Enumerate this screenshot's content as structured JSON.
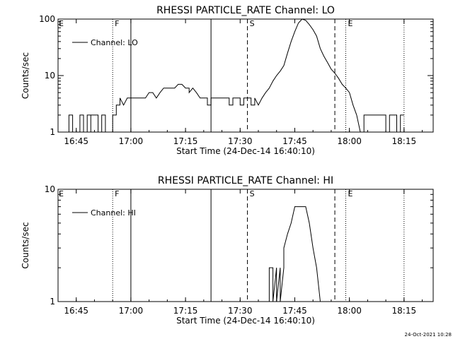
{
  "footer": {
    "timestamp": "24-Oct-2021 10:28"
  },
  "chart_data": [
    {
      "type": "line",
      "title": "RHESSI PARTICLE_RATE Channel: LO",
      "xlabel": "Start Time (24-Dec-14 16:40:10)",
      "ylabel": "Counts/sec",
      "y_scale": "log",
      "xlim": [
        "16:40",
        "18:23"
      ],
      "ylim": [
        1,
        100
      ],
      "x_ticks": [
        "16:45",
        "17:00",
        "17:15",
        "17:30",
        "17:45",
        "18:00",
        "18:15"
      ],
      "y_ticks": [
        "1",
        "10",
        "100"
      ],
      "legend": {
        "position": "top-left",
        "entries": [
          "Channel: LO"
        ]
      },
      "markers": [
        {
          "time": "16:55",
          "style": "dotted",
          "label": "F"
        },
        {
          "time": "17:00",
          "style": "solid",
          "label": ""
        },
        {
          "time": "17:22",
          "style": "solid",
          "label": ""
        },
        {
          "time": "17:32",
          "style": "dashed",
          "label": "S"
        },
        {
          "time": "17:56",
          "style": "dashed",
          "label": ""
        },
        {
          "time": "17:59",
          "style": "dotted",
          "label": "E"
        },
        {
          "time": "18:15",
          "style": "dotted",
          "label": ""
        }
      ],
      "edge_labels": [
        "E"
      ],
      "series": [
        {
          "name": "Channel: LO",
          "points": [
            [
              "16:43",
              1
            ],
            [
              "16:43",
              2
            ],
            [
              "16:44",
              2
            ],
            [
              "16:44",
              1
            ],
            [
              "16:46",
              1
            ],
            [
              "16:46",
              2
            ],
            [
              "16:47",
              2
            ],
            [
              "16:47",
              1
            ],
            [
              "16:48",
              1
            ],
            [
              "16:48",
              2
            ],
            [
              "16:49",
              2
            ],
            [
              "16:49",
              1
            ],
            [
              "16:49",
              2
            ],
            [
              "16:50",
              2
            ],
            [
              "16:51",
              2
            ],
            [
              "16:51",
              1
            ],
            [
              "16:52",
              1
            ],
            [
              "16:52",
              2
            ],
            [
              "16:53",
              2
            ],
            [
              "16:53",
              1
            ],
            [
              "16:54",
              1
            ],
            [
              "16:55",
              1
            ],
            [
              "16:55",
              2
            ],
            [
              "16:56",
              2
            ],
            [
              "16:56",
              3
            ],
            [
              "16:57",
              3
            ],
            [
              "16:57",
              4
            ],
            [
              "16:58",
              3
            ],
            [
              "16:58",
              3
            ],
            [
              "16:59",
              4
            ],
            [
              "17:00",
              4
            ],
            [
              "17:01",
              4
            ],
            [
              "17:02",
              4
            ],
            [
              "17:03",
              4
            ],
            [
              "17:04",
              4
            ],
            [
              "17:05",
              5
            ],
            [
              "17:06",
              5
            ],
            [
              "17:07",
              4
            ],
            [
              "17:08",
              5
            ],
            [
              "17:09",
              6
            ],
            [
              "17:10",
              6
            ],
            [
              "17:11",
              6
            ],
            [
              "17:12",
              6
            ],
            [
              "17:13",
              7
            ],
            [
              "17:14",
              7
            ],
            [
              "17:15",
              6
            ],
            [
              "17:16",
              6
            ],
            [
              "17:16",
              5
            ],
            [
              "17:17",
              6
            ],
            [
              "17:18",
              5
            ],
            [
              "17:19",
              4
            ],
            [
              "17:20",
              4
            ],
            [
              "17:21",
              4
            ],
            [
              "17:21",
              3
            ],
            [
              "17:22",
              3
            ],
            [
              "17:22",
              4
            ],
            [
              "17:23",
              4
            ],
            [
              "17:24",
              4
            ],
            [
              "17:25",
              4
            ],
            [
              "17:26",
              4
            ],
            [
              "17:27",
              4
            ],
            [
              "17:27",
              3
            ],
            [
              "17:28",
              3
            ],
            [
              "17:28",
              4
            ],
            [
              "17:29",
              4
            ],
            [
              "17:30",
              4
            ],
            [
              "17:30",
              3
            ],
            [
              "17:31",
              3
            ],
            [
              "17:31",
              4
            ],
            [
              "17:32",
              4
            ],
            [
              "17:33",
              4
            ],
            [
              "17:33",
              3
            ],
            [
              "17:34",
              3
            ],
            [
              "17:34",
              4
            ],
            [
              "17:35",
              3
            ],
            [
              "17:36",
              4
            ],
            [
              "17:37",
              5
            ],
            [
              "17:38",
              6
            ],
            [
              "17:39",
              8
            ],
            [
              "17:40",
              10
            ],
            [
              "17:41",
              12
            ],
            [
              "17:42",
              15
            ],
            [
              "17:43",
              25
            ],
            [
              "17:44",
              40
            ],
            [
              "17:45",
              60
            ],
            [
              "17:46",
              85
            ],
            [
              "17:47",
              100
            ],
            [
              "17:48",
              95
            ],
            [
              "17:49",
              80
            ],
            [
              "17:50",
              65
            ],
            [
              "17:51",
              50
            ],
            [
              "17:52",
              30
            ],
            [
              "17:53",
              22
            ],
            [
              "17:54",
              17
            ],
            [
              "17:55",
              13
            ],
            [
              "17:56",
              11
            ],
            [
              "17:57",
              9
            ],
            [
              "17:58",
              7
            ],
            [
              "17:59",
              6
            ],
            [
              "18:00",
              5
            ],
            [
              "18:01",
              3
            ],
            [
              "18:02",
              2
            ],
            [
              "18:03",
              1
            ],
            [
              "18:04",
              1
            ],
            [
              "18:04",
              2
            ],
            [
              "18:05",
              2
            ],
            [
              "18:06",
              2
            ],
            [
              "18:07",
              2
            ],
            [
              "18:08",
              2
            ],
            [
              "18:09",
              2
            ],
            [
              "18:10",
              2
            ],
            [
              "18:10",
              1
            ],
            [
              "18:11",
              1
            ],
            [
              "18:11",
              2
            ],
            [
              "18:13",
              2
            ],
            [
              "18:13",
              1
            ],
            [
              "18:14",
              1
            ],
            [
              "18:14",
              2
            ],
            [
              "18:15",
              2
            ]
          ]
        }
      ]
    },
    {
      "type": "line",
      "title": "RHESSI PARTICLE_RATE Channel: HI",
      "xlabel": "Start Time (24-Dec-14 16:40:10)",
      "ylabel": "Counts/sec",
      "y_scale": "log",
      "xlim": [
        "16:40",
        "18:23"
      ],
      "ylim": [
        1,
        10
      ],
      "x_ticks": [
        "16:45",
        "17:00",
        "17:15",
        "17:30",
        "17:45",
        "18:00",
        "18:15"
      ],
      "y_ticks": [
        "1",
        "10"
      ],
      "legend": {
        "position": "top-left",
        "entries": [
          "Channel: HI"
        ]
      },
      "markers": [
        {
          "time": "16:55",
          "style": "dotted",
          "label": "F"
        },
        {
          "time": "17:00",
          "style": "solid",
          "label": ""
        },
        {
          "time": "17:22",
          "style": "solid",
          "label": ""
        },
        {
          "time": "17:32",
          "style": "dashed",
          "label": "S"
        },
        {
          "time": "17:56",
          "style": "dashed",
          "label": ""
        },
        {
          "time": "17:59",
          "style": "dotted",
          "label": "E"
        },
        {
          "time": "18:15",
          "style": "dotted",
          "label": ""
        }
      ],
      "edge_labels": [
        "E"
      ],
      "series": [
        {
          "name": "Channel: HI",
          "points": [
            [
              "17:38",
              1
            ],
            [
              "17:38",
              2
            ],
            [
              "17:39",
              2
            ],
            [
              "17:39",
              1
            ],
            [
              "17:40",
              2
            ],
            [
              "17:40",
              1
            ],
            [
              "17:41",
              2
            ],
            [
              "17:41",
              1
            ],
            [
              "17:42",
              2
            ],
            [
              "17:42",
              3
            ],
            [
              "17:43",
              4
            ],
            [
              "17:44",
              5
            ],
            [
              "17:45",
              7
            ],
            [
              "17:46",
              7
            ],
            [
              "17:47",
              7
            ],
            [
              "17:48",
              7
            ],
            [
              "17:49",
              5
            ],
            [
              "17:50",
              3
            ],
            [
              "17:51",
              2
            ],
            [
              "17:52",
              1
            ]
          ]
        }
      ]
    }
  ]
}
